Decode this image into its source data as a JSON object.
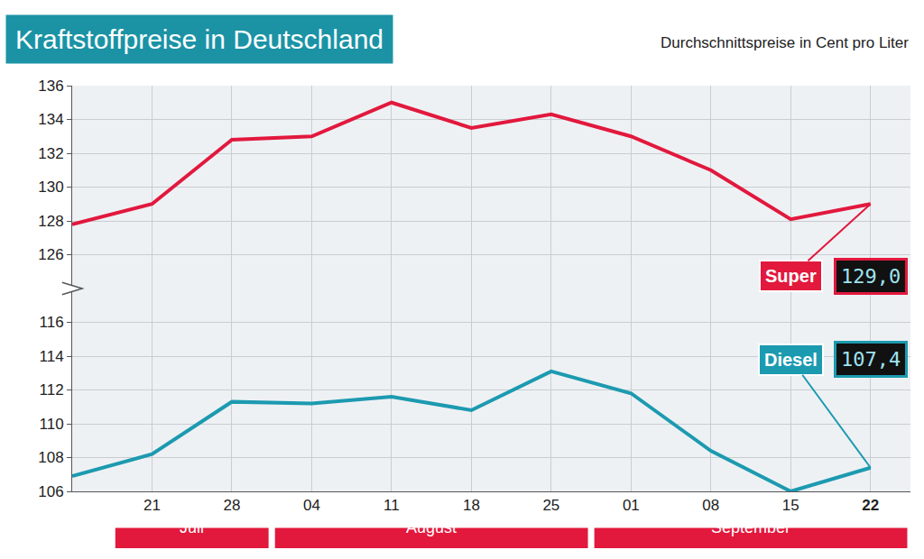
{
  "chart_data": {
    "type": "line",
    "title": "Kraftstoffpreise in Deutschland",
    "subtitle": "Durchschnittspreise in Cent pro Liter",
    "categories": [
      null,
      "21",
      "28",
      "04",
      "11",
      "18",
      "25",
      "01",
      "08",
      "15",
      "22"
    ],
    "series": [
      {
        "name": "Super",
        "color": "#e2183d",
        "values": [
          127.8,
          129.0,
          132.8,
          133.0,
          135.0,
          133.5,
          134.3,
          133.0,
          131.0,
          128.1,
          129.0
        ],
        "value_labels": [
          null,
          null,
          null,
          null,
          null,
          null,
          null,
          null,
          null,
          null,
          "129,0"
        ]
      },
      {
        "name": "Diesel",
        "color": "#1c9ab0",
        "axis": "y2",
        "values": [
          106.9,
          108.2,
          111.3,
          111.2,
          111.6,
          110.8,
          113.1,
          111.8,
          108.4,
          106.0,
          107.4
        ],
        "value_labels": [
          null,
          null,
          null,
          null,
          null,
          null,
          null,
          null,
          null,
          null,
          "107,4"
        ]
      }
    ],
    "ylim": [
      124,
      136
    ],
    "yticks": [
      126,
      128,
      130,
      132,
      134,
      136
    ],
    "y2lim": [
      106,
      118
    ],
    "y2ticks": [
      106,
      108,
      110,
      112,
      114,
      116
    ],
    "grid": true,
    "data_labels": true,
    "annotations": [
      {
        "text": "Juli",
        "span": [
          "21",
          "28"
        ]
      },
      {
        "text": "August",
        "span": [
          "04",
          "25"
        ]
      },
      {
        "text": "September",
        "span": [
          "01",
          "22"
        ]
      }
    ]
  }
}
